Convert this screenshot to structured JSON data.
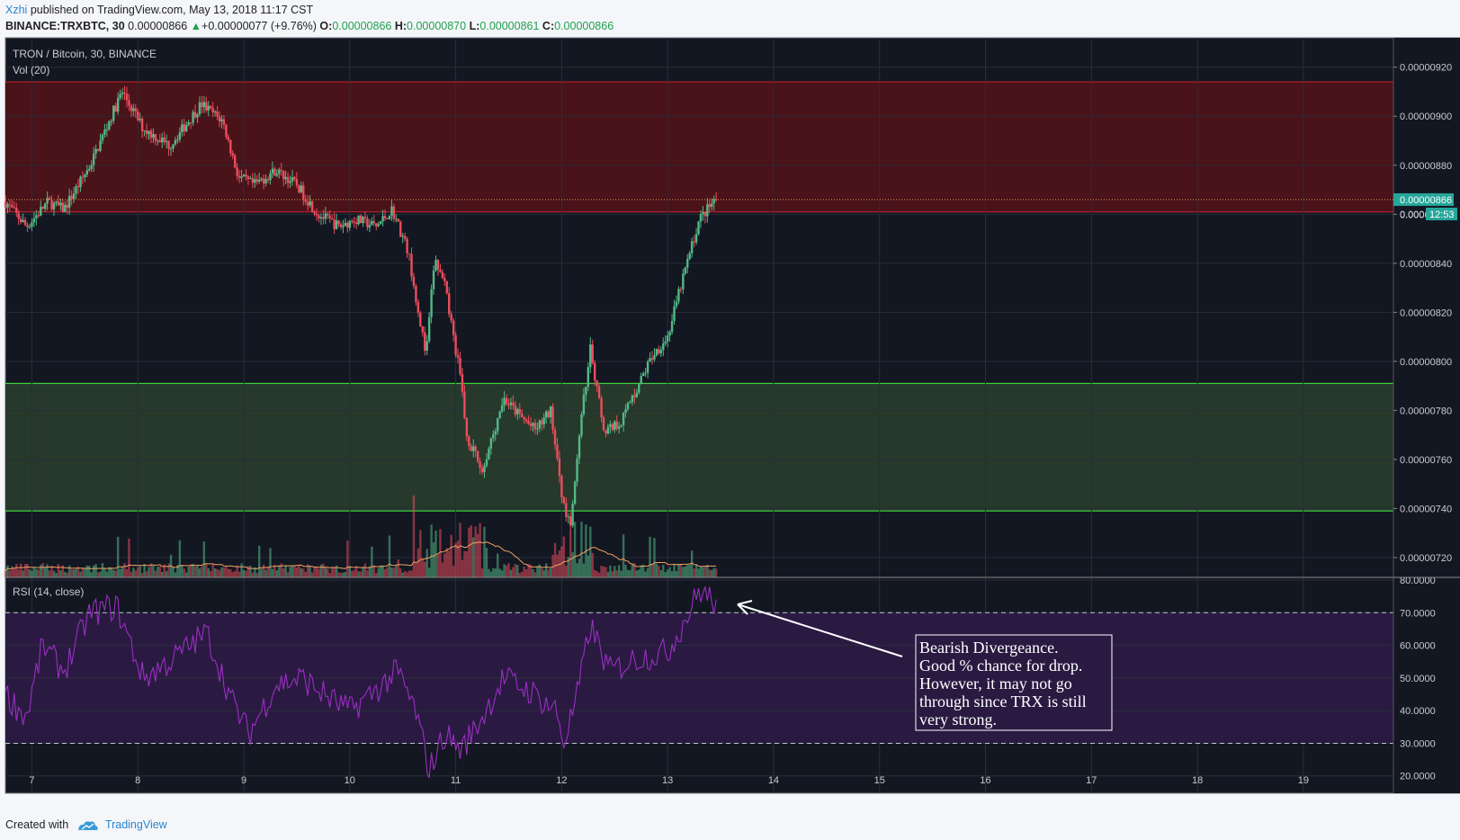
{
  "header": {
    "author": "Xzhi",
    "published": "published on TradingView.com, May 13, 2018 11:17 CST",
    "symbol": "BINANCE:TRXBTC, 30",
    "price": "0.00000866",
    "change_arrow": "▲",
    "change": "+0.00000077 (+9.76%)",
    "o_label": "O:",
    "o_value": "0.00000866",
    "h_label": "H:",
    "h_value": "0.00000870",
    "l_label": "L:",
    "l_value": "0.00000861",
    "c_label": "C:",
    "c_value": "0.00000866"
  },
  "footer": {
    "created_with": "Created with",
    "brand": "TradingView"
  },
  "colors": {
    "background": "#131722",
    "grid": "#2a2e39",
    "up": "#53b987",
    "down": "#eb4d5c",
    "resistance_zone": "#4a1219",
    "support_zone": "#26392b",
    "rsi_band": "#2a1a42",
    "rsi_line": "#9a2ec2",
    "volume_ma": "#f0a060",
    "price_label_bg": "#26a69a"
  },
  "chart_data": [
    {
      "type": "candlestick",
      "title": "TRON / Bitcoin, 30, BINANCE",
      "indicator_label": "Vol (20)",
      "y_ticks": [
        "0.00000920",
        "0.00000900",
        "0.00000880",
        "0.00000860",
        "0.00000840",
        "0.00000820",
        "0.00000800",
        "0.00000780",
        "0.00000760",
        "0.00000740",
        "0.00000720"
      ],
      "ylim": [
        7.119e-06,
        9.32e-06
      ],
      "x_ticks": [
        "7",
        "8",
        "9",
        "10",
        "11",
        "12",
        "13",
        "14",
        "15",
        "16",
        "17",
        "18",
        "19"
      ],
      "x_range_days": [
        6.75,
        19.85
      ],
      "last_price_label": "0.00000866",
      "countdown_label": "12:53",
      "hidden_price_label": "0.000",
      "zones": [
        {
          "name": "resistance",
          "from": 8.61e-06,
          "to": 9.14e-06
        },
        {
          "name": "support",
          "from": 7.39e-06,
          "to": 7.91e-06
        }
      ],
      "anchors": [
        [
          6.75,
          8.65
        ],
        [
          6.95,
          8.55
        ],
        [
          7.15,
          8.65
        ],
        [
          7.3,
          8.62
        ],
        [
          7.55,
          8.8
        ],
        [
          7.85,
          9.1
        ],
        [
          8.05,
          8.95
        ],
        [
          8.3,
          8.88
        ],
        [
          8.6,
          9.05
        ],
        [
          8.8,
          8.98
        ],
        [
          8.95,
          8.75
        ],
        [
          9.1,
          8.72
        ],
        [
          9.3,
          8.78
        ],
        [
          9.5,
          8.72
        ],
        [
          9.7,
          8.6
        ],
        [
          9.9,
          8.55
        ],
        [
          10.05,
          8.58
        ],
        [
          10.25,
          8.55
        ],
        [
          10.4,
          8.62
        ],
        [
          10.55,
          8.45
        ],
        [
          10.65,
          8.2
        ],
        [
          10.72,
          8.02
        ],
        [
          10.8,
          8.42
        ],
        [
          10.9,
          8.3
        ],
        [
          11.05,
          7.92
        ],
        [
          11.1,
          7.7
        ],
        [
          11.25,
          7.55
        ],
        [
          11.35,
          7.7
        ],
        [
          11.45,
          7.85
        ],
        [
          11.6,
          7.78
        ],
        [
          11.75,
          7.72
        ],
        [
          11.9,
          7.8
        ],
        [
          12.0,
          7.45
        ],
        [
          12.08,
          7.33
        ],
        [
          12.2,
          7.82
        ],
        [
          12.27,
          8.05
        ],
        [
          12.4,
          7.72
        ],
        [
          12.55,
          7.75
        ],
        [
          12.7,
          7.88
        ],
        [
          12.85,
          8.02
        ],
        [
          13.0,
          8.1
        ],
        [
          13.15,
          8.35
        ],
        [
          13.3,
          8.58
        ],
        [
          13.45,
          8.66
        ]
      ],
      "rsi": {
        "title": "RSI (14, close)",
        "y_ticks": [
          "80.0000",
          "70.0000",
          "60.0000",
          "50.0000",
          "40.0000",
          "30.0000",
          "20.0000"
        ],
        "ylim": [
          18,
          80
        ],
        "overbought": 70,
        "oversold": 30,
        "anchors": [
          [
            6.75,
            45
          ],
          [
            6.95,
            38
          ],
          [
            7.1,
            60
          ],
          [
            7.3,
            52
          ],
          [
            7.55,
            70
          ],
          [
            7.8,
            72
          ],
          [
            8.05,
            50
          ],
          [
            8.3,
            55
          ],
          [
            8.65,
            64
          ],
          [
            8.9,
            42
          ],
          [
            9.05,
            33
          ],
          [
            9.3,
            48
          ],
          [
            9.55,
            50
          ],
          [
            9.8,
            44
          ],
          [
            10.0,
            40
          ],
          [
            10.2,
            45
          ],
          [
            10.45,
            52
          ],
          [
            10.62,
            40
          ],
          [
            10.75,
            22
          ],
          [
            10.9,
            33
          ],
          [
            11.05,
            28
          ],
          [
            11.25,
            38
          ],
          [
            11.45,
            50
          ],
          [
            11.7,
            46
          ],
          [
            11.95,
            40
          ],
          [
            12.02,
            30
          ],
          [
            12.15,
            45
          ],
          [
            12.27,
            66
          ],
          [
            12.45,
            52
          ],
          [
            12.7,
            56
          ],
          [
            13.0,
            58
          ],
          [
            13.2,
            70
          ],
          [
            13.3,
            77
          ],
          [
            13.45,
            73
          ]
        ]
      }
    }
  ],
  "annotation": {
    "lines": [
      "Bearish Divergeance.",
      "Good % chance for drop.",
      "However, it may not go",
      "through since TRX is still",
      "very strong."
    ]
  }
}
